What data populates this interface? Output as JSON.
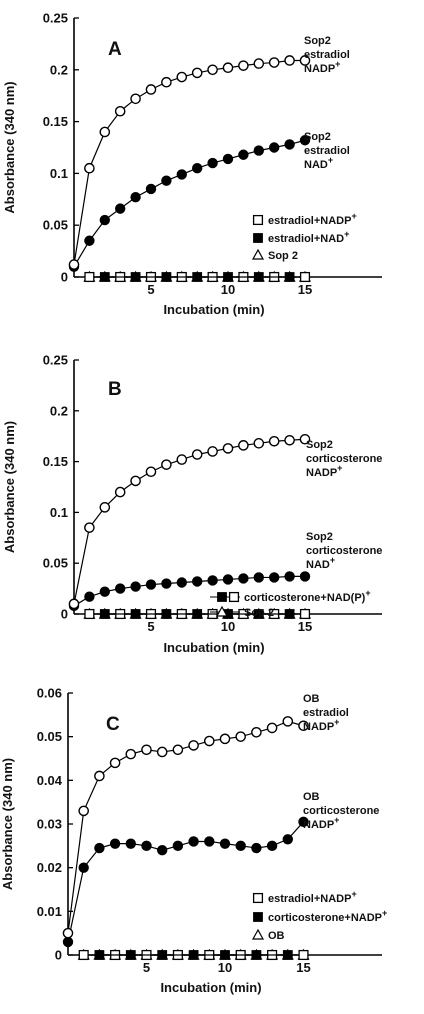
{
  "chart_data": [
    {
      "type": "line",
      "panel_label": "A",
      "xlabel": "Incubation (min)",
      "ylabel": "Absorbance (340 nm)",
      "xlim": [
        0,
        20
      ],
      "ylim": [
        0,
        0.25
      ],
      "x_ticks": [
        "5",
        "10",
        "15"
      ],
      "y_ticks": [
        "0",
        "0.05",
        "0.1",
        "0.15",
        "0.2",
        "0.25"
      ],
      "series": [
        {
          "legend": "estradiol+NADP+",
          "marker": "open-circle",
          "x": [
            0,
            1,
            2,
            3,
            4,
            5,
            6,
            7,
            8,
            9,
            10,
            11,
            12,
            13,
            14,
            15
          ],
          "y": [
            0.012,
            0.105,
            0.14,
            0.16,
            0.172,
            0.181,
            0.188,
            0.193,
            0.197,
            0.2,
            0.202,
            0.204,
            0.206,
            0.207,
            0.209,
            0.209
          ]
        },
        {
          "legend": "estradiol+NAD+",
          "marker": "filled-circle",
          "x": [
            0,
            1,
            2,
            3,
            4,
            5,
            6,
            7,
            8,
            9,
            10,
            11,
            12,
            13,
            14,
            15
          ],
          "y": [
            0.01,
            0.035,
            0.055,
            0.066,
            0.077,
            0.085,
            0.093,
            0.099,
            0.105,
            0.11,
            0.114,
            0.118,
            0.122,
            0.125,
            0.128,
            0.132
          ]
        },
        {
          "legend": "Sop 2",
          "marker": "open-triangle",
          "x": [
            1,
            2,
            3,
            4,
            5,
            6,
            7,
            8,
            9,
            10,
            11,
            12,
            13,
            14,
            15
          ],
          "y": [
            0,
            0,
            0,
            0,
            0,
            0,
            0,
            0,
            0,
            0,
            0,
            0,
            0,
            0,
            0
          ]
        },
        {
          "legend": "",
          "marker": "open-square",
          "x": [
            1,
            3,
            5,
            7,
            9,
            11,
            13,
            15
          ],
          "y": [
            0,
            0,
            0,
            0,
            0,
            0,
            0,
            0
          ]
        },
        {
          "legend": "",
          "marker": "filled-square",
          "x": [
            2,
            4,
            6,
            8,
            10,
            12,
            14
          ],
          "y": [
            0,
            0,
            0,
            0,
            0,
            0,
            0
          ]
        }
      ],
      "annotations": [
        {
          "lines": [
            "Sop2",
            "estradiol",
            "NADP+"
          ]
        },
        {
          "lines": [
            "Sop2",
            "estradiol",
            "NAD+"
          ]
        }
      ],
      "legend": [
        {
          "marker": "open-square",
          "label": "estradiol+NADP+"
        },
        {
          "marker": "filled-square",
          "label": "estradiol+NAD+"
        },
        {
          "marker": "open-triangle",
          "label": "Sop 2"
        }
      ]
    },
    {
      "type": "line",
      "panel_label": "B",
      "xlabel": "Incubation (min)",
      "ylabel": "Absorbance (340 nm)",
      "xlim": [
        0,
        20
      ],
      "ylim": [
        0,
        0.25
      ],
      "x_ticks": [
        "5",
        "10",
        "15"
      ],
      "y_ticks": [
        "0",
        "0.05",
        "0.1",
        "0.15",
        "0.2",
        "0.25"
      ],
      "series": [
        {
          "legend": "corticosterone+NADP+",
          "marker": "open-circle",
          "x": [
            0,
            1,
            2,
            3,
            4,
            5,
            6,
            7,
            8,
            9,
            10,
            11,
            12,
            13,
            14,
            15
          ],
          "y": [
            0.01,
            0.085,
            0.105,
            0.12,
            0.131,
            0.14,
            0.147,
            0.152,
            0.157,
            0.16,
            0.163,
            0.166,
            0.168,
            0.17,
            0.171,
            0.172
          ]
        },
        {
          "legend": "corticosterone+NAD+",
          "marker": "filled-circle",
          "x": [
            0,
            1,
            2,
            3,
            4,
            5,
            6,
            7,
            8,
            9,
            10,
            11,
            12,
            13,
            14,
            15
          ],
          "y": [
            0.008,
            0.017,
            0.022,
            0.025,
            0.027,
            0.029,
            0.03,
            0.031,
            0.032,
            0.033,
            0.034,
            0.035,
            0.036,
            0.036,
            0.037,
            0.037
          ]
        },
        {
          "legend": "Sop 2",
          "marker": "open-triangle",
          "x": [
            1,
            2,
            3,
            4,
            5,
            6,
            7,
            8,
            9,
            10,
            11,
            12,
            13,
            14,
            15
          ],
          "y": [
            0,
            0,
            0,
            0,
            0,
            0,
            0,
            0,
            0,
            0,
            0,
            0,
            0,
            0,
            0
          ]
        },
        {
          "legend": "",
          "marker": "open-square",
          "x": [
            1,
            3,
            5,
            7,
            9,
            11,
            13,
            15
          ],
          "y": [
            0,
            0,
            0,
            0,
            0,
            0,
            0,
            0
          ]
        },
        {
          "legend": "",
          "marker": "filled-square",
          "x": [
            2,
            4,
            6,
            8,
            10,
            12,
            14
          ],
          "y": [
            0,
            0,
            0,
            0,
            0,
            0,
            0
          ]
        }
      ],
      "annotations": [
        {
          "lines": [
            "Sop2",
            "corticosterone",
            "NADP+"
          ]
        },
        {
          "lines": [
            "Sop2",
            "corticosterone",
            "NAD+"
          ]
        }
      ],
      "legend": [
        {
          "marker": "filled-square",
          "label": "corticosterone+NAD(P)+"
        },
        {
          "marker": "open-triangle",
          "label": "Sop 2"
        }
      ]
    },
    {
      "type": "line",
      "panel_label": "C",
      "xlabel": "Incubation (min)",
      "ylabel": "Absorbance (340 nm)",
      "xlim": [
        0,
        20
      ],
      "ylim": [
        0,
        0.06
      ],
      "x_ticks": [
        "5",
        "10",
        "15"
      ],
      "y_ticks": [
        "0",
        "0.01",
        "0.02",
        "0.03",
        "0.04",
        "0.05",
        "0.06"
      ],
      "series": [
        {
          "legend": "estradiol+NADP+",
          "marker": "open-circle",
          "x": [
            0,
            1,
            2,
            3,
            4,
            5,
            6,
            7,
            8,
            9,
            10,
            11,
            12,
            13,
            14,
            15
          ],
          "y": [
            0.005,
            0.033,
            0.041,
            0.044,
            0.046,
            0.047,
            0.0465,
            0.047,
            0.048,
            0.049,
            0.0495,
            0.05,
            0.051,
            0.052,
            0.0535,
            0.0525
          ]
        },
        {
          "legend": "corticosterone+NADP+",
          "marker": "filled-circle",
          "x": [
            0,
            1,
            2,
            3,
            4,
            5,
            6,
            7,
            8,
            9,
            10,
            11,
            12,
            13,
            14,
            15
          ],
          "y": [
            0.003,
            0.02,
            0.0245,
            0.0255,
            0.0255,
            0.025,
            0.024,
            0.025,
            0.026,
            0.026,
            0.0255,
            0.025,
            0.0245,
            0.025,
            0.0265,
            0.0305
          ]
        },
        {
          "legend": "OB",
          "marker": "open-triangle",
          "x": [
            1,
            2,
            3,
            4,
            5,
            6,
            7,
            8,
            9,
            10,
            11,
            12,
            13,
            14,
            15
          ],
          "y": [
            0,
            0,
            0,
            0,
            0,
            0,
            0,
            0,
            0,
            0,
            0,
            0,
            0,
            0,
            0
          ]
        },
        {
          "legend": "",
          "marker": "open-square",
          "x": [
            1,
            3,
            5,
            7,
            9,
            11,
            13,
            15
          ],
          "y": [
            0,
            0,
            0,
            0,
            0,
            0,
            0,
            0
          ]
        },
        {
          "legend": "",
          "marker": "filled-square",
          "x": [
            2,
            4,
            6,
            8,
            10,
            12,
            14
          ],
          "y": [
            0,
            0,
            0,
            0,
            0,
            0,
            0
          ]
        }
      ],
      "annotations": [
        {
          "lines": [
            "OB",
            "estradiol",
            "NADP+"
          ]
        },
        {
          "lines": [
            "OB",
            "corticosterone",
            "NADP+"
          ]
        }
      ],
      "legend": [
        {
          "marker": "open-square",
          "label": "estradiol+NADP+"
        },
        {
          "marker": "filled-square",
          "label": "corticosterone+NADP+"
        },
        {
          "marker": "open-triangle",
          "label": "OB"
        }
      ]
    }
  ]
}
